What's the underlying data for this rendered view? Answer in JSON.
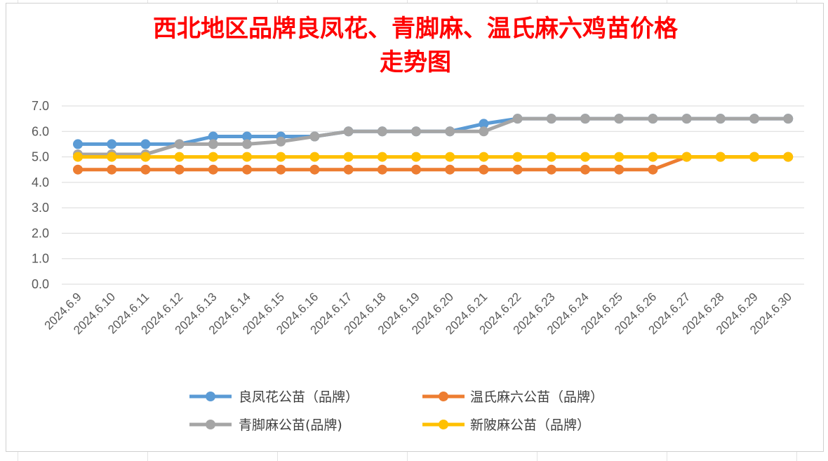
{
  "chart_data": {
    "type": "line",
    "title_lines": [
      "西北地区品牌良凤花、青脚麻、温氏麻六鸡苗价格",
      "走势图"
    ],
    "categories": [
      "2024.6.9",
      "2024.6.10",
      "2024.6.11",
      "2024.6.12",
      "2024.6.13",
      "2024.6.14",
      "2024.6.15",
      "2024.6.16",
      "2024.6.17",
      "2024.6.18",
      "2024.6.19",
      "2024.6.20",
      "2024.6.21",
      "2024.6.22",
      "2024.6.23",
      "2024.6.24",
      "2024.6.25",
      "2024.6.26",
      "2024.6.27",
      "2024.6.28",
      "2024.6.29",
      "2024.6.30"
    ],
    "y_ticks": [
      "0.0",
      "1.0",
      "2.0",
      "3.0",
      "4.0",
      "5.0",
      "6.0",
      "7.0"
    ],
    "ylim": [
      0,
      7
    ],
    "grid": true,
    "legend_position": "bottom",
    "series": [
      {
        "name": "良凤花公苗（品牌）",
        "color": "#5b9bd5",
        "values": [
          5.5,
          5.5,
          5.5,
          5.5,
          5.8,
          5.8,
          5.8,
          5.8,
          6.0,
          6.0,
          6.0,
          6.0,
          6.3,
          6.5,
          6.5,
          6.5,
          6.5,
          6.5,
          6.5,
          6.5,
          6.5,
          6.5
        ]
      },
      {
        "name": "温氏麻六公苗（品牌）",
        "color": "#ed7d31",
        "values": [
          4.5,
          4.5,
          4.5,
          4.5,
          4.5,
          4.5,
          4.5,
          4.5,
          4.5,
          4.5,
          4.5,
          4.5,
          4.5,
          4.5,
          4.5,
          4.5,
          4.5,
          4.5,
          5.0,
          5.0,
          5.0,
          5.0
        ]
      },
      {
        "name": "青脚麻公苗(品牌)",
        "color": "#a5a5a5",
        "values": [
          5.1,
          5.1,
          5.1,
          5.5,
          5.5,
          5.5,
          5.6,
          5.8,
          6.0,
          6.0,
          6.0,
          6.0,
          6.0,
          6.5,
          6.5,
          6.5,
          6.5,
          6.5,
          6.5,
          6.5,
          6.5,
          6.5
        ]
      },
      {
        "name": "新陂麻公苗（品牌）",
        "color": "#ffc000",
        "values": [
          5.0,
          5.0,
          5.0,
          5.0,
          5.0,
          5.0,
          5.0,
          5.0,
          5.0,
          5.0,
          5.0,
          5.0,
          5.0,
          5.0,
          5.0,
          5.0,
          5.0,
          5.0,
          5.0,
          5.0,
          5.0,
          5.0
        ]
      }
    ]
  }
}
